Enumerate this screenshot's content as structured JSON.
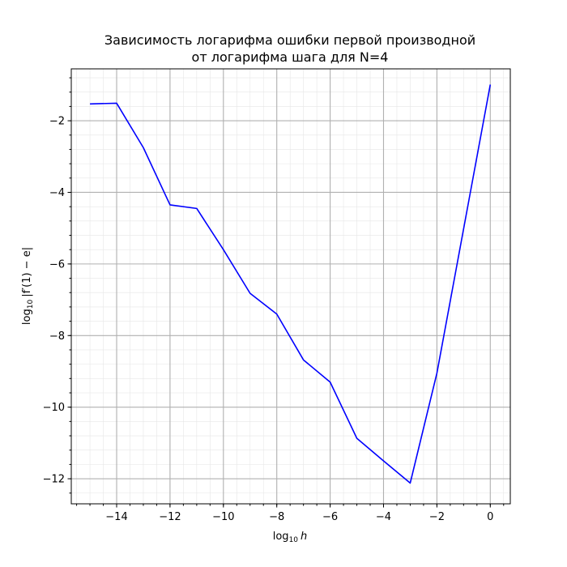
{
  "chart_data": {
    "type": "line",
    "title_lines": [
      "Зависимость логарифма ошибки первой производной",
      "от логарифма шага для N=4"
    ],
    "xlabel": {
      "base": "log",
      "sub": "10",
      "var": "h"
    },
    "ylabel": {
      "base": "log",
      "sub": "10",
      "expr": "|f′(1) − e|"
    },
    "xlim": [
      -15.7,
      0.75
    ],
    "ylim": [
      -12.7,
      -0.55
    ],
    "x_major_ticks": [
      -14,
      -12,
      -10,
      -8,
      -6,
      -4,
      -2,
      0
    ],
    "x_minor_step": 0.5,
    "y_major_ticks": [
      -12,
      -10,
      -8,
      -6,
      -4,
      -2
    ],
    "y_minor_step": 0.4,
    "grid": true,
    "series": [
      {
        "color": "#0000ff",
        "x": [
          -15,
          -14,
          -13,
          -12,
          -11,
          -10,
          -9,
          -8,
          -7,
          -6,
          -5,
          -4,
          -3,
          -2,
          0
        ],
        "y": [
          -1.53,
          -1.51,
          -2.75,
          -4.35,
          -4.45,
          -5.6,
          -6.82,
          -7.4,
          -8.68,
          -9.3,
          -10.87,
          -11.5,
          -12.12,
          -9.05,
          -0.99
        ]
      }
    ]
  }
}
